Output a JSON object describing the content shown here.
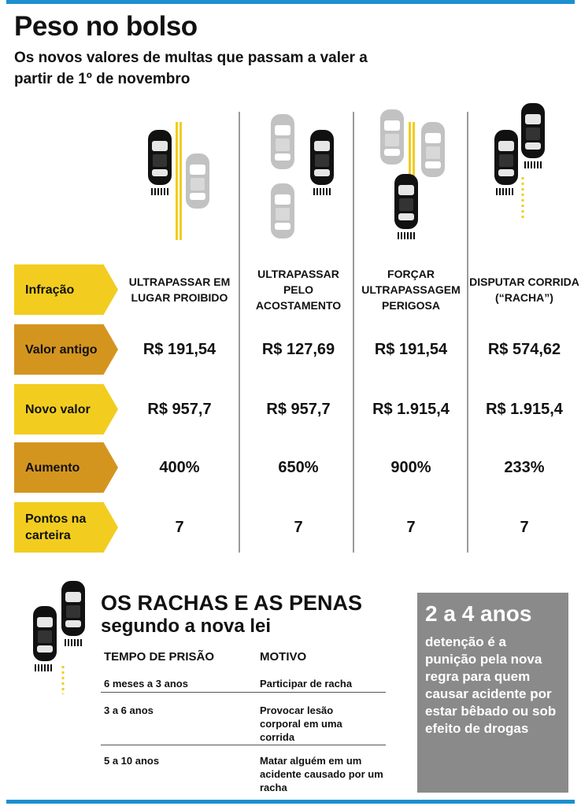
{
  "title": "Peso no bolso",
  "subtitle": "Os novos valores de multas que passam a valer a partir de 1º de novembro",
  "row_labels": {
    "infracao": "Infração",
    "valor_antigo": "Valor antigo",
    "novo_valor": "Novo valor",
    "aumento": "Aumento",
    "pontos": "Pontos na carteira"
  },
  "columns": [
    {
      "infracao": "ULTRAPASSAR EM LUGAR PROIBIDO",
      "valor_antigo": "R$ 191,54",
      "novo_valor": "R$ 957,7",
      "aumento": "400%",
      "pontos": "7"
    },
    {
      "infracao": "ULTRAPASSAR PELO ACOSTAMENTO",
      "valor_antigo": "R$ 127,69",
      "novo_valor": "R$ 957,7",
      "aumento": "650%",
      "pontos": "7"
    },
    {
      "infracao": "FORÇAR ULTRAPASSAGEM PERIGOSA",
      "valor_antigo": "R$ 191,54",
      "novo_valor": "R$ 1.915,4",
      "aumento": "900%",
      "pontos": "7"
    },
    {
      "infracao": "DISPUTAR CORRIDA (“RACHA”)",
      "valor_antigo": "R$ 574,62",
      "novo_valor": "R$ 1.915,4",
      "aumento": "233%",
      "pontos": "7"
    }
  ],
  "section2": {
    "title": "OS RACHAS E AS PENAS",
    "subtitle": "segundo a nova lei",
    "col_prison": "TEMPO DE PRISÃO",
    "col_motivo": "MOTIVO",
    "rows": [
      {
        "tempo": "6 meses a 3 anos",
        "motivo": "Participar de racha"
      },
      {
        "tempo": "3 a 6 anos",
        "motivo": "Provocar lesão corporal em uma corrida"
      },
      {
        "tempo": "5 a 10 anos",
        "motivo": "Matar alguém em um acidente causado por um racha"
      }
    ]
  },
  "box": {
    "highlight": "2 a 4 anos",
    "text": "detenção é a punição pela nova regra para quem causar acidente por estar bêbado ou sob efeito de drogas"
  },
  "colors": {
    "yellow": "#f2cd1f",
    "orange": "#d4951f",
    "gray_box": "#8a8a8a",
    "accent_blue": "#1d8fcf"
  }
}
